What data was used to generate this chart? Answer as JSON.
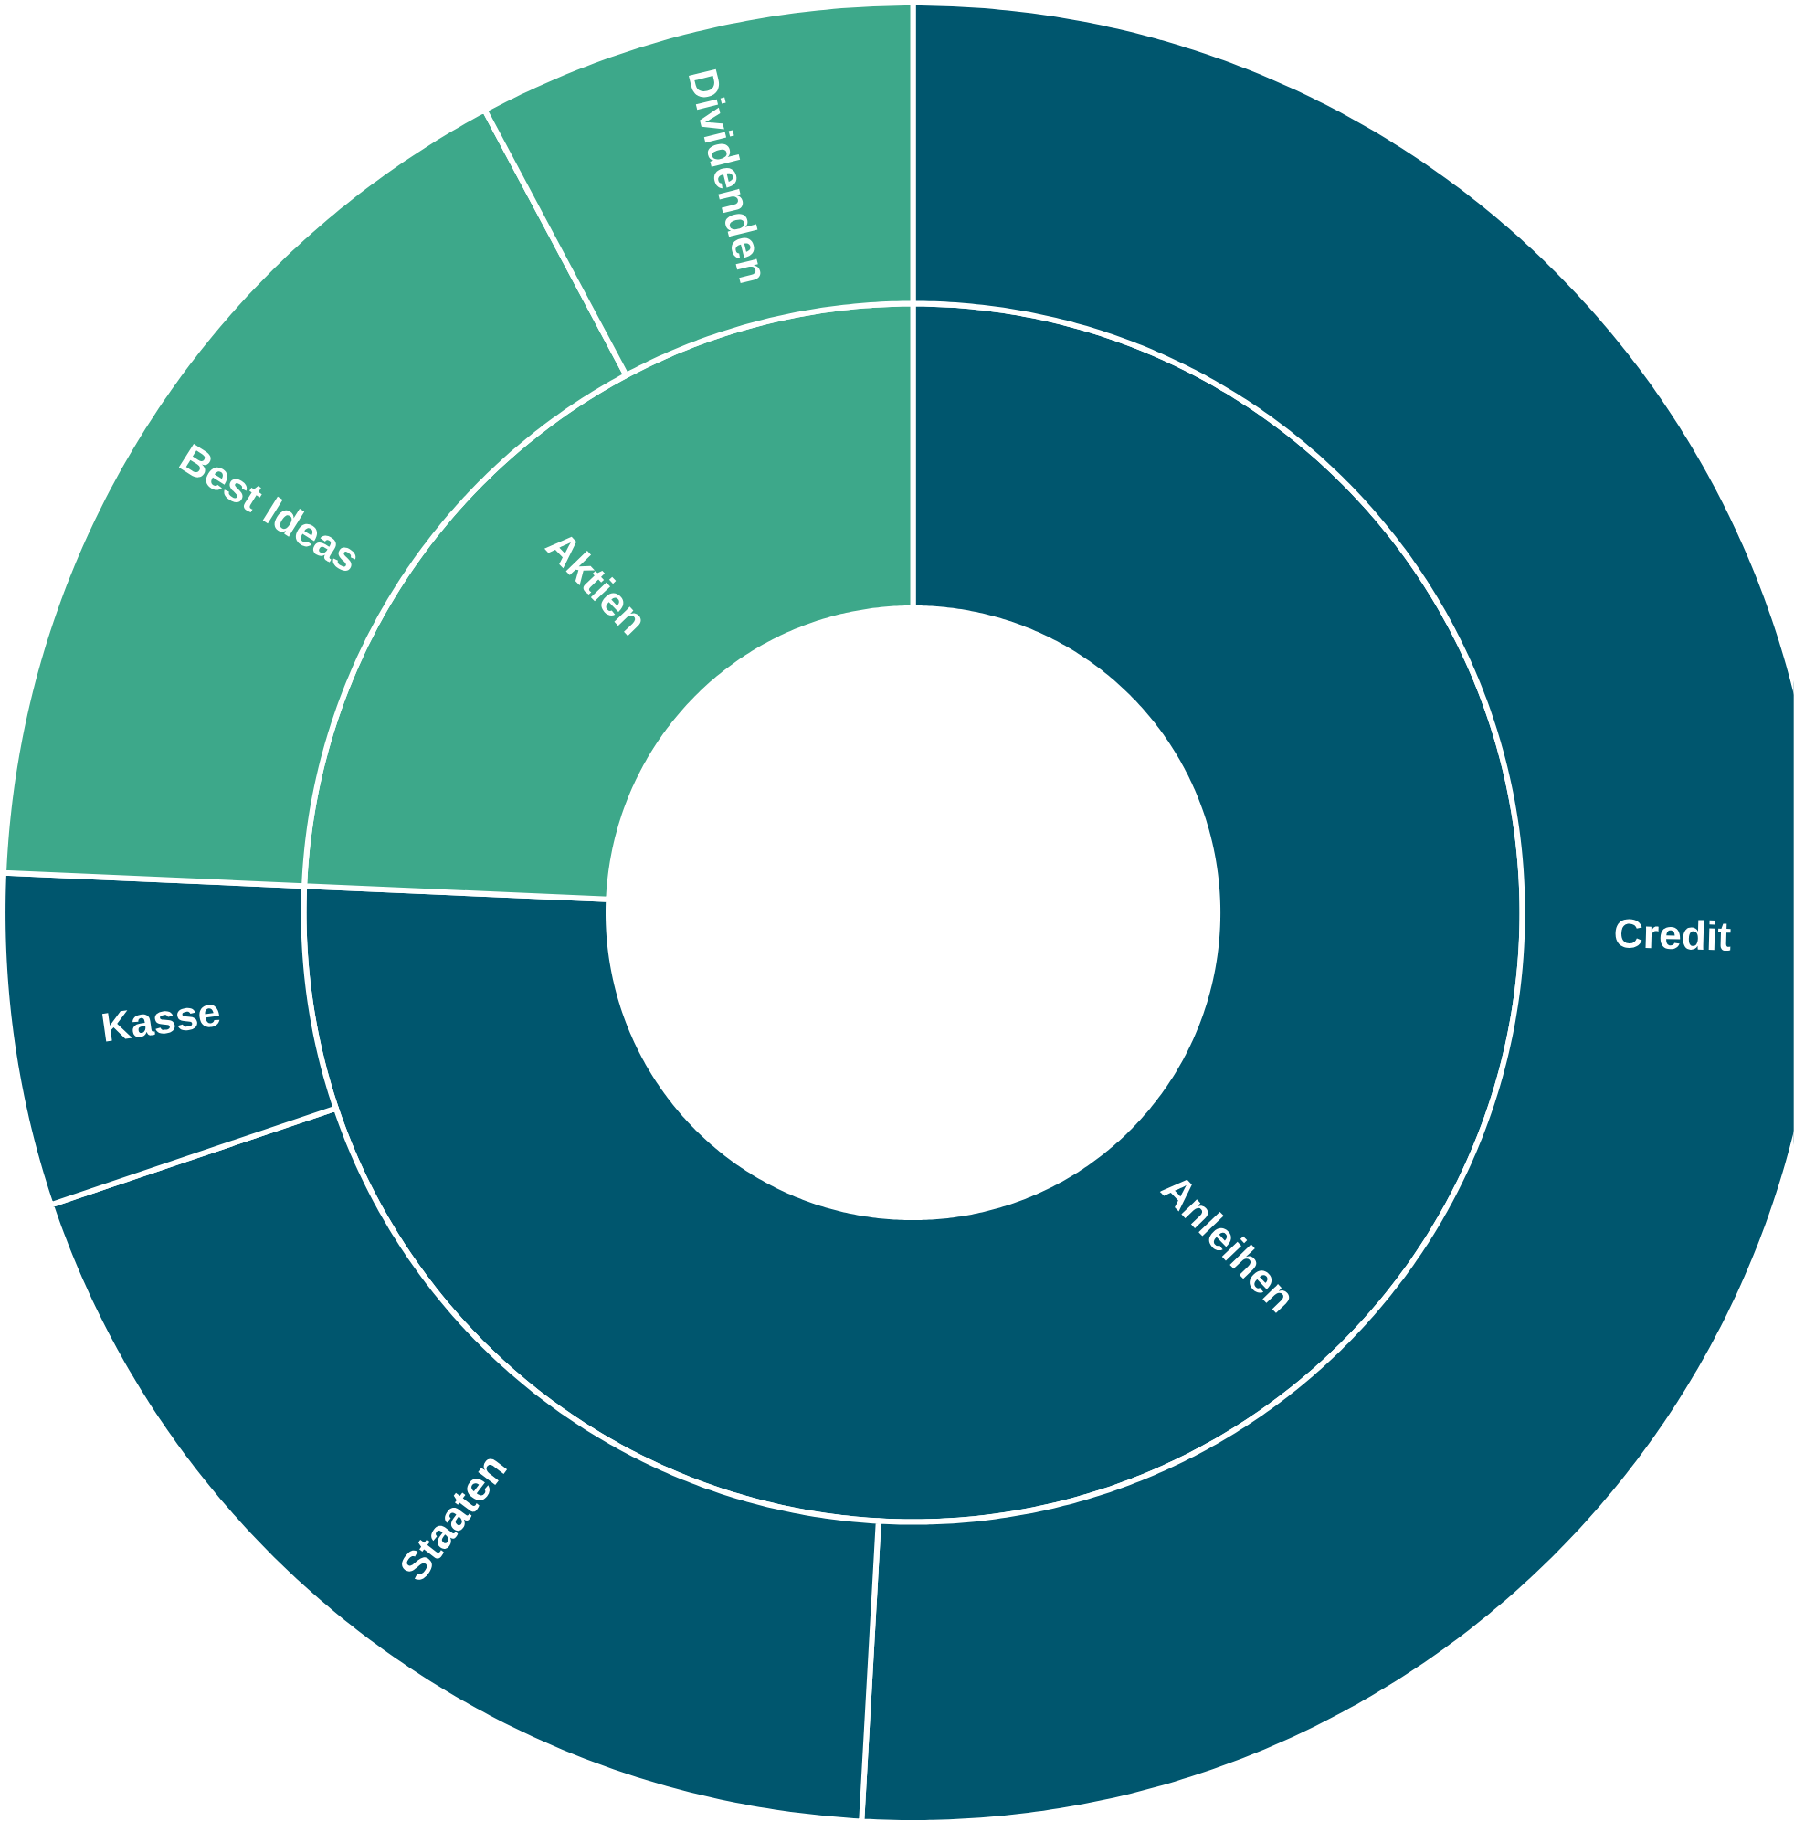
{
  "chart_data": [
    {
      "type": "donut",
      "categories": [
        "Anleihen",
        "Aktien"
      ],
      "values": [
        75.7,
        24.3
      ],
      "colors": [
        "#00566e",
        "#3da88a"
      ]
    },
    {
      "type": "donut",
      "categories": [
        "Credit",
        "Staaten",
        "Kasse",
        "Best Ideas",
        "Dividenden"
      ],
      "values": [
        50.9,
        18.9,
        5.9,
        16.5,
        7.8
      ],
      "colors": [
        "#00566e",
        "#00566e",
        "#00566e",
        "#3da88a",
        "#3da88a"
      ]
    }
  ]
}
